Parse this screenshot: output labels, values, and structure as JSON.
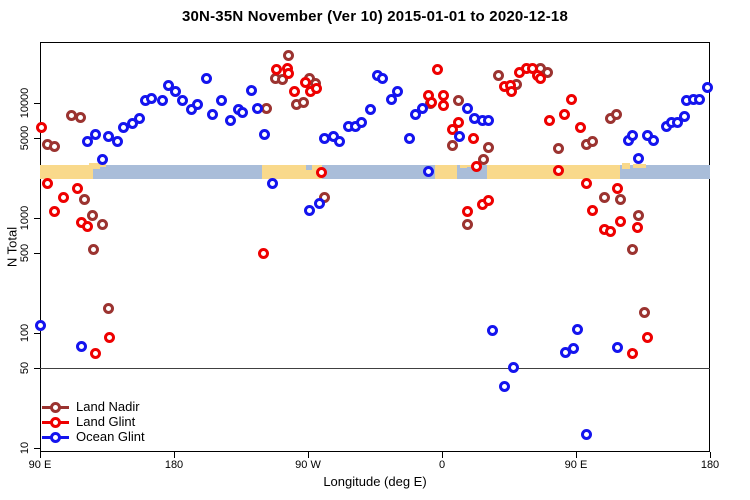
{
  "title": "30N-35N November (Ver 10)   2015-01-01 to 2020-12-18",
  "chart_data": {
    "type": "scatter",
    "title": "30N-35N November (Ver 10)   2015-01-01 to 2020-12-18",
    "xlabel": "Longitude (deg E)",
    "ylabel": "N Total",
    "x_axis": {
      "domain": [
        90,
        540
      ],
      "note": "longitude unwrapped eastward from 90E across the dateline back to 180",
      "ticks": [
        {
          "value": 90,
          "label": "90 E"
        },
        {
          "value": 180,
          "label": "180"
        },
        {
          "value": 270,
          "label": "90 W"
        },
        {
          "value": 360,
          "label": "0"
        },
        {
          "value": 450,
          "label": "90 E"
        },
        {
          "value": 540,
          "label": "180"
        }
      ]
    },
    "y_axis": {
      "scale": "log10",
      "domain": [
        9,
        34000
      ],
      "ticks": [
        {
          "value": 10,
          "label": "10"
        },
        {
          "value": 50,
          "label": "50"
        },
        {
          "value": 100,
          "label": "100"
        },
        {
          "value": 500,
          "label": "500"
        },
        {
          "value": 1000,
          "label": "1000"
        },
        {
          "value": 5000,
          "label": "5000"
        },
        {
          "value": 10000,
          "label": "10000"
        }
      ]
    },
    "reference_line": {
      "y": 50
    },
    "map_band": {
      "value_top": 2900,
      "value_bottom": 2200,
      "land_color": "#f9d98b",
      "ocean_color": "#a9bdd9",
      "segments": [
        {
          "from": 90,
          "to": 125.6,
          "type": "land"
        },
        {
          "from": 125.6,
          "to": 239.1,
          "type": "ocean"
        },
        {
          "from": 239.1,
          "to": 279.4,
          "type": "land"
        },
        {
          "from": 279.4,
          "to": 355.3,
          "type": "ocean"
        },
        {
          "from": 355.3,
          "to": 370.0,
          "type": "land"
        },
        {
          "from": 370.0,
          "to": 390.2,
          "type": "ocean"
        },
        {
          "from": 390.2,
          "to": 479.5,
          "type": "land"
        },
        {
          "from": 479.5,
          "to": 540,
          "type": "ocean"
        }
      ],
      "coast_detail": [
        {
          "from": 123,
          "to": 130,
          "type": "land",
          "dy": -2,
          "h": 6
        },
        {
          "from": 130,
          "to": 134,
          "type": "land",
          "dy": -1,
          "h": 3
        },
        {
          "from": 268.5,
          "to": 272.5,
          "type": "ocean",
          "dy": 0,
          "h": 5
        },
        {
          "from": 372,
          "to": 377,
          "type": "land",
          "dy": 0,
          "h": 3
        },
        {
          "from": 377,
          "to": 381,
          "type": "land",
          "dy": 0,
          "h": 2
        },
        {
          "from": 481,
          "to": 486,
          "type": "land",
          "dy": -2,
          "h": 6
        },
        {
          "from": 488,
          "to": 497,
          "type": "land",
          "dy": -1,
          "h": 4
        }
      ]
    },
    "series": [
      {
        "name": "Land Nadir",
        "color": "#9b3330",
        "points": [
          [
            95,
            4400
          ],
          [
            100,
            4200
          ],
          [
            111,
            7800
          ],
          [
            117,
            7500
          ],
          [
            120,
            1460
          ],
          [
            125,
            1060
          ],
          [
            132,
            870
          ],
          [
            126,
            530
          ],
          [
            136,
            162
          ],
          [
            242,
            9000
          ],
          [
            248,
            16200
          ],
          [
            253,
            16000
          ],
          [
            257,
            26100
          ],
          [
            262,
            9800
          ],
          [
            267,
            10200
          ],
          [
            271,
            16400
          ],
          [
            275,
            14900
          ],
          [
            281,
            1520
          ],
          [
            352,
            10000
          ],
          [
            367,
            4300
          ],
          [
            371,
            10600
          ],
          [
            391,
            4100
          ],
          [
            388,
            3200
          ],
          [
            377,
            870
          ],
          [
            398,
            17500
          ],
          [
            410,
            14600
          ],
          [
            426,
            19800
          ],
          [
            431,
            18600
          ],
          [
            438,
            4000
          ],
          [
            457,
            4400
          ],
          [
            461,
            4600
          ],
          [
            473,
            7300
          ],
          [
            477,
            7900
          ],
          [
            469,
            1520
          ],
          [
            480,
            1440
          ],
          [
            492,
            1060
          ],
          [
            488,
            530
          ],
          [
            496,
            152
          ]
        ]
      },
      {
        "name": "Land Glint",
        "color": "#ee0000",
        "points": [
          [
            91,
            6100
          ],
          [
            95,
            1980
          ],
          [
            115,
            1820
          ],
          [
            106,
            1520
          ],
          [
            100,
            1150
          ],
          [
            118,
            920
          ],
          [
            122,
            850
          ],
          [
            137,
            92
          ],
          [
            127,
            67
          ],
          [
            249,
            19400
          ],
          [
            256,
            20100
          ],
          [
            257,
            18200
          ],
          [
            261,
            12700
          ],
          [
            268,
            15200
          ],
          [
            272,
            12500
          ],
          [
            276,
            13500
          ],
          [
            279,
            2510
          ],
          [
            240,
            490
          ],
          [
            357,
            19400
          ],
          [
            351,
            11700
          ],
          [
            353,
            10200
          ],
          [
            361,
            11700
          ],
          [
            361,
            9600
          ],
          [
            371,
            6800
          ],
          [
            367,
            5900
          ],
          [
            381,
            4900
          ],
          [
            383,
            2830
          ],
          [
            377,
            1130
          ],
          [
            387,
            1320
          ],
          [
            391,
            1410
          ],
          [
            402,
            13800
          ],
          [
            406,
            14300
          ],
          [
            407,
            12700
          ],
          [
            412,
            18600
          ],
          [
            417,
            20100
          ],
          [
            421,
            19800
          ],
          [
            424,
            17500
          ],
          [
            426,
            16200
          ],
          [
            447,
            10800
          ],
          [
            442,
            8000
          ],
          [
            432,
            7100
          ],
          [
            453,
            6100
          ],
          [
            438,
            2610
          ],
          [
            457,
            1980
          ],
          [
            478,
            1820
          ],
          [
            461,
            1170
          ],
          [
            480,
            940
          ],
          [
            469,
            800
          ],
          [
            473,
            760
          ],
          [
            491,
            820
          ],
          [
            498,
            91
          ],
          [
            488,
            67
          ]
        ]
      },
      {
        "name": "Ocean Glint",
        "color": "#1414ee",
        "points": [
          [
            122,
            4600
          ],
          [
            127,
            5300
          ],
          [
            136,
            5100
          ],
          [
            142,
            4600
          ],
          [
            132,
            3200
          ],
          [
            146,
            6100
          ],
          [
            152,
            6600
          ],
          [
            157,
            7300
          ],
          [
            161,
            10600
          ],
          [
            165,
            11000
          ],
          [
            90,
            117
          ],
          [
            118,
            77
          ],
          [
            176,
            14300
          ],
          [
            181,
            12500
          ],
          [
            172,
            10500
          ],
          [
            186,
            10500
          ],
          [
            202,
            16200
          ],
          [
            192,
            8700
          ],
          [
            196,
            9700
          ],
          [
            206,
            8000
          ],
          [
            212,
            10600
          ],
          [
            218,
            7100
          ],
          [
            223,
            8700
          ],
          [
            226,
            8300
          ],
          [
            232,
            12900
          ],
          [
            236,
            8900
          ],
          [
            241,
            5300
          ],
          [
            246,
            1980
          ],
          [
            281,
            4900
          ],
          [
            287,
            5100
          ],
          [
            291,
            4600
          ],
          [
            297,
            6200
          ],
          [
            302,
            6200
          ],
          [
            306,
            6800
          ],
          [
            312,
            8700
          ],
          [
            317,
            17500
          ],
          [
            320,
            16200
          ],
          [
            326,
            10800
          ],
          [
            330,
            12700
          ],
          [
            338,
            4900
          ],
          [
            278,
            1350
          ],
          [
            271,
            1170
          ],
          [
            342,
            8000
          ],
          [
            347,
            8900
          ],
          [
            351,
            2560
          ],
          [
            377,
            8900
          ],
          [
            382,
            7300
          ],
          [
            387,
            7100
          ],
          [
            391,
            7100
          ],
          [
            372,
            5100
          ],
          [
            394,
            106
          ],
          [
            408,
            50
          ],
          [
            402,
            34
          ],
          [
            485,
            4700
          ],
          [
            488,
            5200
          ],
          [
            498,
            5200
          ],
          [
            502,
            4700
          ],
          [
            492,
            3260
          ],
          [
            451,
            108
          ],
          [
            443,
            68
          ],
          [
            448,
            73
          ],
          [
            478,
            75
          ],
          [
            457,
            13
          ],
          [
            511,
            6200
          ],
          [
            514,
            6800
          ],
          [
            518,
            6800
          ],
          [
            523,
            7600
          ],
          [
            524,
            10600
          ],
          [
            529,
            10800
          ],
          [
            533,
            10800
          ],
          [
            538,
            13600
          ]
        ]
      }
    ]
  },
  "legend": {
    "position": "bottom-left",
    "items": [
      {
        "label": "Land Nadir",
        "color": "#9b3330"
      },
      {
        "label": "Land Glint",
        "color": "#ee0000"
      },
      {
        "label": "Ocean Glint",
        "color": "#1414ee"
      }
    ]
  }
}
